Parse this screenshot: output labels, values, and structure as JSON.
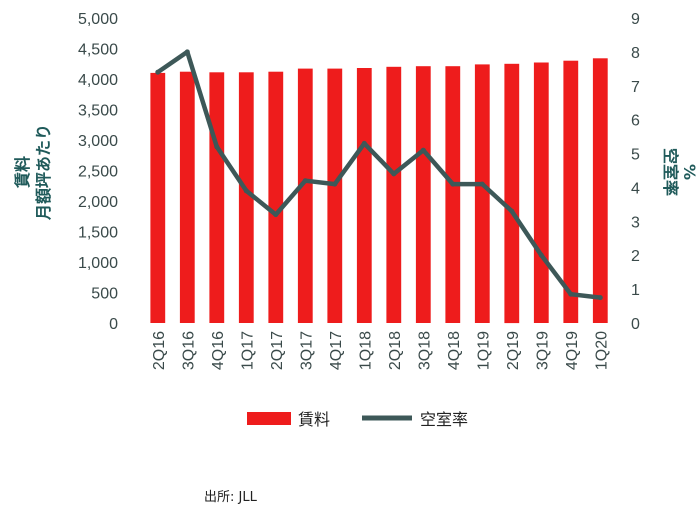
{
  "chart_data": {
    "type": "bar+line",
    "categories": [
      "2Q16",
      "3Q16",
      "4Q16",
      "1Q17",
      "2Q17",
      "3Q17",
      "4Q17",
      "1Q18",
      "2Q18",
      "3Q18",
      "4Q18",
      "1Q19",
      "2Q19",
      "3Q19",
      "4Q19",
      "1Q20"
    ],
    "series": [
      {
        "name": "賃料",
        "type": "bar",
        "axis": "left",
        "color": "#ee1c1c",
        "values": [
          4100,
          4120,
          4110,
          4110,
          4120,
          4170,
          4170,
          4180,
          4200,
          4210,
          4210,
          4240,
          4250,
          4270,
          4300,
          4340
        ]
      },
      {
        "name": "空室率",
        "type": "line",
        "axis": "right",
        "color": "#3d5858",
        "values": [
          7.4,
          8.0,
          5.2,
          3.9,
          3.2,
          4.2,
          4.1,
          5.3,
          4.4,
          5.1,
          4.1,
          4.1,
          3.3,
          2.0,
          0.85,
          0.75
        ]
      }
    ],
    "yleft": {
      "label_line1": "賃料",
      "label_line2": "月額坪あたり",
      "ticks": [
        "0",
        "500",
        "1,000",
        "1,500",
        "2,000",
        "2,500",
        "3,000",
        "3,500",
        "4,000",
        "4,500",
        "5,000"
      ],
      "ylim": [
        0,
        5000
      ]
    },
    "yright": {
      "label_line1": "空室率",
      "label_line2": "%",
      "ticks": [
        "0",
        "1",
        "2",
        "3",
        "4",
        "5",
        "6",
        "7",
        "8",
        "9"
      ],
      "ylim": [
        0,
        9
      ]
    },
    "legend_position": "bottom",
    "grid": false
  },
  "source_text": "出所: JLL"
}
